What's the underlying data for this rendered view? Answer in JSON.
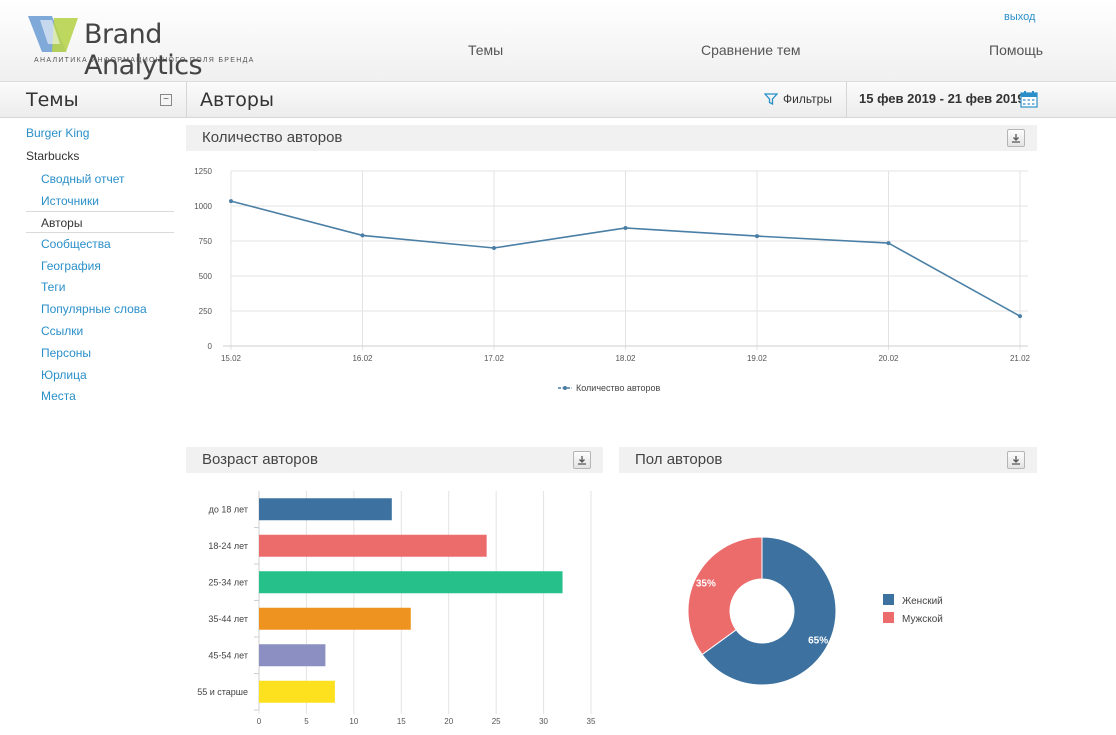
{
  "header": {
    "brand_name": "Brand Analytics",
    "tagline": "АНАЛИТИКА ИНФОРМАЦИОННОГО ПОЛЯ БРЕНДА",
    "logout": "выход",
    "nav": [
      {
        "label": "Темы"
      },
      {
        "label": "Сравнение тем"
      },
      {
        "label": "Помощь"
      }
    ]
  },
  "toolbar": {
    "themes_title": "Темы",
    "collapse_symbol": "−",
    "page_title": "Авторы",
    "filters_label": "Фильтры",
    "date_range": "15 фев 2019 - 21 фев 2019"
  },
  "sidebar": {
    "items": [
      {
        "label": "Burger King"
      },
      {
        "label": "Starbucks"
      },
      {
        "label": "Сводный отчет"
      },
      {
        "label": "Источники"
      },
      {
        "label": "Авторы"
      },
      {
        "label": "Сообщества"
      },
      {
        "label": "География"
      },
      {
        "label": "Теги"
      },
      {
        "label": "Популярные слова"
      },
      {
        "label": "Ссылки"
      },
      {
        "label": "Персоны"
      },
      {
        "label": "Юрлица"
      },
      {
        "label": "Места"
      }
    ]
  },
  "panels": {
    "authors_count_title": "Количество авторов",
    "age_title": "Возраст авторов",
    "gender_title": "Пол авторов"
  },
  "colors": {
    "line": "#4a7fa5",
    "age_bars": [
      "#3d72a0",
      "#ec6b6b",
      "#26c08a",
      "#ee9320",
      "#8b8fc2",
      "#fde01e"
    ],
    "gender": [
      "#3d72a0",
      "#ec6b6b"
    ]
  },
  "chart_data": [
    {
      "type": "line",
      "title": "",
      "x": [
        "15.02",
        "16.02",
        "17.02",
        "18.02",
        "19.02",
        "20.02",
        "21.02"
      ],
      "series": [
        {
          "name": "Количество авторов",
          "values": [
            1035,
            790,
            700,
            843,
            785,
            735,
            213
          ]
        }
      ],
      "ylim": [
        0,
        1250
      ],
      "yticks": [
        0,
        250,
        500,
        750,
        1000,
        1250
      ],
      "grid": true,
      "legend": "bottom"
    },
    {
      "type": "bar",
      "orientation": "horizontal",
      "categories": [
        "до 18 лет",
        "18-24 лет",
        "25-34 лет",
        "35-44 лет",
        "45-54 лет",
        "55 и старше"
      ],
      "values": [
        14,
        24,
        32,
        16,
        7,
        8
      ],
      "xlim": [
        0,
        35
      ],
      "xticks": [
        0,
        5,
        10,
        15,
        20,
        25,
        30,
        35
      ],
      "grid": true
    },
    {
      "type": "pie",
      "donut": true,
      "labels": [
        "Женский",
        "Мужской"
      ],
      "values": [
        65,
        35
      ],
      "value_labels": [
        "65%",
        "35%"
      ],
      "legend": "right"
    }
  ]
}
